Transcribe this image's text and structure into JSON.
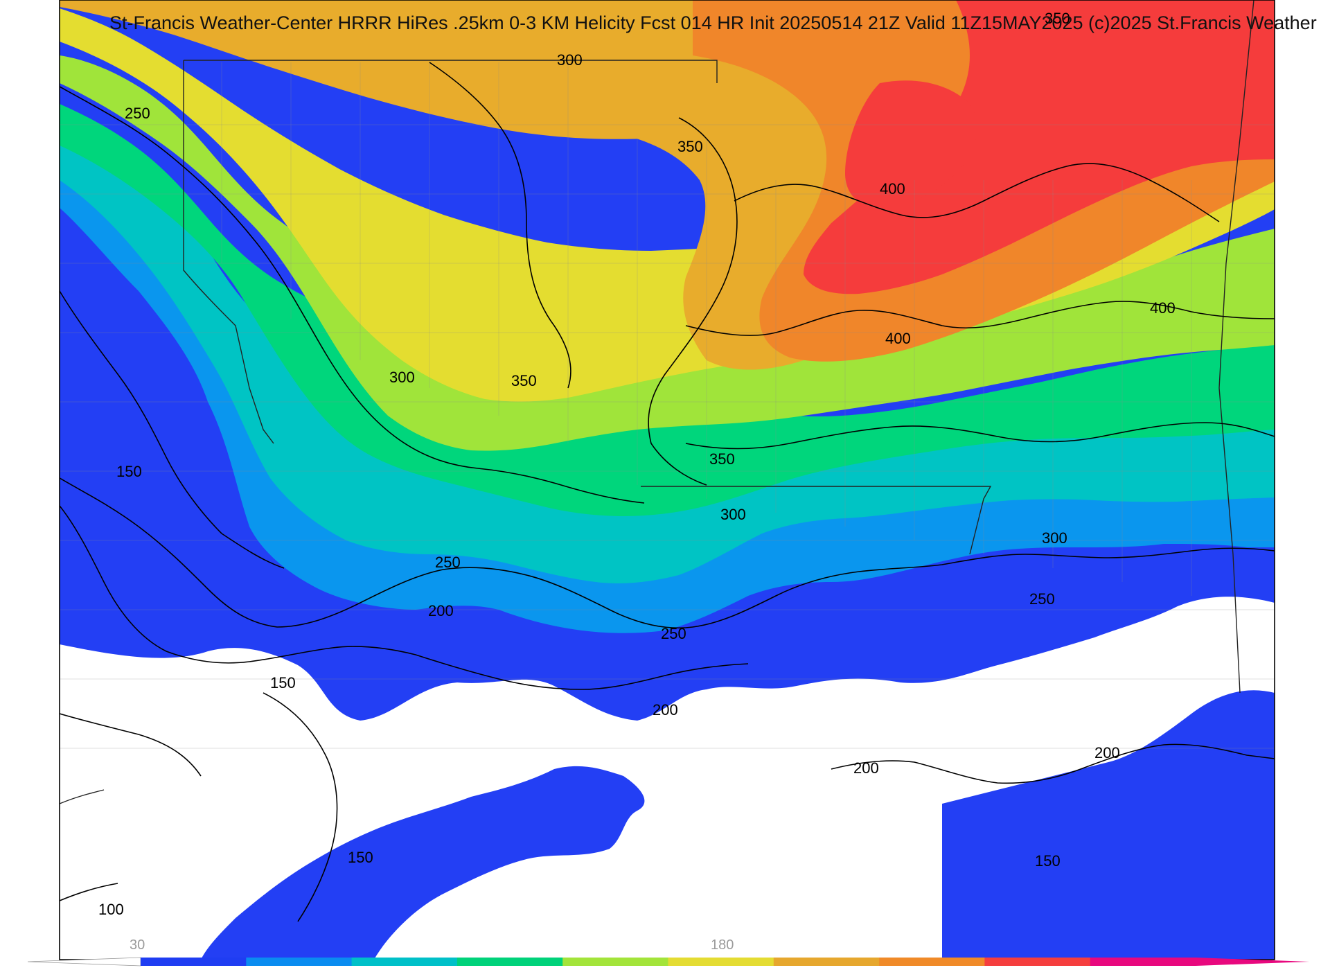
{
  "title": "St-Francis Weather-Center HRRR HiRes .25km 0-3 KM Helicity Fcst 014 HR Init 20250514 21Z  Valid 11Z15MAY2025   (c)2025 St.Francis Weather",
  "contour_labels": [
    "350",
    "250",
    "300",
    "350",
    "400",
    "400",
    "400",
    "300",
    "350",
    "150",
    "350",
    "300",
    "300",
    "250",
    "250",
    "200",
    "250",
    "150",
    "200",
    "200",
    "200",
    "150",
    "150",
    "100"
  ],
  "colorbar": {
    "tick_labels": [
      "30",
      "180"
    ],
    "colors": [
      "#1f3df2",
      "#0a8cf0",
      "#00c0c8",
      "#00d27a",
      "#a3e43a",
      "#e4dc33",
      "#e6a72e",
      "#f08a28",
      "#f53e3e",
      "#e8087e"
    ]
  },
  "fill_colors": {
    "dark_blue": "#233ff4",
    "light_blue": "#0a96ee",
    "teal": "#00c4c4",
    "green": "#00d67c",
    "lime": "#a0e43a",
    "yellow": "#e4dd30",
    "gold": "#e8ac2c",
    "orange": "#f0862a",
    "red": "#f53c3c",
    "magenta": "#e8087e"
  }
}
